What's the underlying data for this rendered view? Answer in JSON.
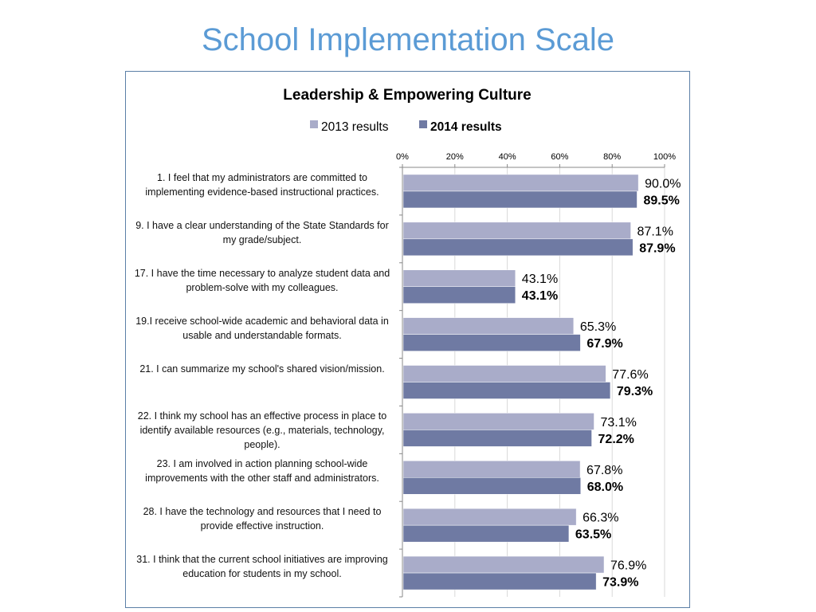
{
  "page_title": "School Implementation Scale",
  "chart_data": {
    "type": "bar",
    "orientation": "horizontal",
    "title": "Leadership & Empowering Culture",
    "xlim": [
      0,
      100
    ],
    "x_ticks": [
      "0%",
      "20%",
      "40%",
      "60%",
      "80%",
      "100%"
    ],
    "grid": true,
    "legend_position": "top",
    "categories": [
      "1. I feel that my administrators are committed to implementing evidence-based instructional practices.",
      "9. I have a clear understanding of the State Standards for my grade/subject.",
      "17. I have the time necessary to analyze student data and problem-solve with my colleagues.",
      "19.I receive school-wide academic and behavioral data in usable and understandable formats.",
      "21. I can summarize my school's shared vision/mission.",
      "22. I think my school has an effective process in place to identify available resources (e.g., materials, technology, people).",
      "23. I am involved in action planning school-wide improvements with the other staff and administrators.",
      "28. I have the technology and resources that I need to provide effective instruction.",
      "31. I think that the current school initiatives are improving education for students in my school."
    ],
    "series": [
      {
        "name": "2013 results",
        "color": "#a9acc9",
        "values": [
          90.0,
          87.1,
          43.1,
          65.3,
          77.6,
          73.1,
          67.8,
          66.3,
          76.9
        ],
        "labels": [
          "90.0%",
          "87.1%",
          "43.1%",
          "65.3%",
          "77.6%",
          "73.1%",
          "67.8%",
          "66.3%",
          "76.9%"
        ]
      },
      {
        "name": "2014 results",
        "color": "#6f7aa3",
        "values": [
          89.5,
          87.9,
          43.1,
          67.9,
          79.3,
          72.2,
          68.0,
          63.5,
          73.9
        ],
        "labels": [
          "89.5%",
          "87.9%",
          "43.1%",
          "67.9%",
          "79.3%",
          "72.2%",
          "68.0%",
          "63.5%",
          "73.9%"
        ]
      }
    ]
  }
}
